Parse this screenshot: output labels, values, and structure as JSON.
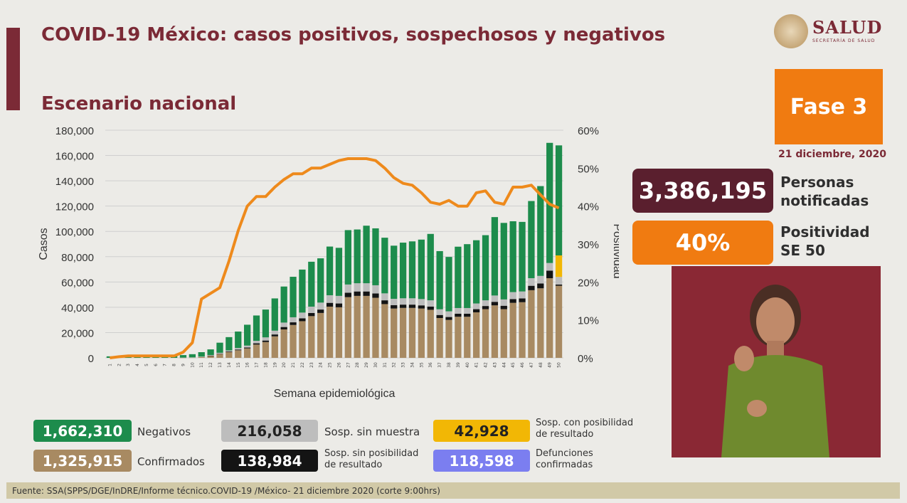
{
  "header": {
    "title": "COVID-19 México: casos positivos, sospechosos y negativos",
    "subtitle": "Escenario nacional"
  },
  "logo": {
    "name": "SALUD",
    "sub": "SECRETARÍA DE SALUD"
  },
  "phase": "Fase 3",
  "date": "21 diciembre, 2020",
  "kpis": {
    "persons_value": "3,386,195",
    "persons_label": "Personas notificadas",
    "positivity_value": "40%",
    "positivity_label": "Positividad SE 50"
  },
  "legend": {
    "negativos_value": "1,662,310",
    "negativos_label": "Negativos",
    "sosp_sin_muestra_value": "216,058",
    "sosp_sin_muestra_label": "Sosp. sin muestra",
    "sosp_con_pos_value": "42,928",
    "sosp_con_pos_label_1": "Sosp. con posibilidad",
    "sosp_con_pos_label_2": "de resultado",
    "confirmados_value": "1,325,915",
    "confirmados_label": "Confirmados",
    "sosp_sin_pos_value": "138,984",
    "sosp_sin_pos_label_1": "Sosp. sin posibilidad",
    "sosp_sin_pos_label_2": "de resultado",
    "defunciones_value": "118,598",
    "defunciones_label_1": "Defunciones",
    "defunciones_label_2": "confirmadas"
  },
  "footer": "Fuente: SSA(SPPS/DGE/InDRE/Informe técnico.COVID-19 /México- 21 diciembre 2020 (corte 9:00hrs)",
  "colors": {
    "confirmados": "#a88a62",
    "sosp_sin_pos": "#141414",
    "sosp_sin_muestra": "#bdbdbd",
    "sosp_con_pos": "#f2b705",
    "negativos": "#1d8c4c",
    "positividad": "#ee8a1c",
    "defunciones": "#7b7ef0"
  },
  "chart_data": {
    "type": "bar",
    "stacked": true,
    "xlabel": "Semana epidemiológica",
    "ylabel": "Casos",
    "ylabel_right": "Positividad",
    "ylim": [
      0,
      180000
    ],
    "y2lim": [
      0,
      60
    ],
    "yticks": [
      "0",
      "20,000",
      "40,000",
      "60,000",
      "80,000",
      "100,000",
      "120,000",
      "140,000",
      "160,000",
      "180,000"
    ],
    "y2ticks": [
      "0%",
      "10%",
      "20%",
      "30%",
      "40%",
      "50%",
      "60%"
    ],
    "categories": [
      "1",
      "2",
      "3",
      "4",
      "5",
      "6",
      "7",
      "8",
      "9",
      "10",
      "11",
      "12",
      "13",
      "14",
      "15",
      "16",
      "17",
      "18",
      "19",
      "20",
      "21",
      "22",
      "23",
      "24",
      "25",
      "26",
      "27",
      "28",
      "29",
      "30",
      "31",
      "32",
      "33",
      "34",
      "35",
      "36",
      "37",
      "38",
      "39",
      "40",
      "41",
      "42",
      "43",
      "44",
      "45",
      "46",
      "47",
      "48",
      "49",
      "50"
    ],
    "series": [
      {
        "name": "Confirmados",
        "values": [
          0,
          0,
          0,
          0,
          0,
          0,
          0,
          0,
          100,
          200,
          700,
          1500,
          3000,
          4500,
          6000,
          7500,
          10500,
          12500,
          17000,
          22500,
          26000,
          29000,
          33000,
          35500,
          40500,
          40000,
          48000,
          49000,
          49000,
          47500,
          42500,
          39000,
          39500,
          39500,
          39000,
          38000,
          31500,
          30000,
          32500,
          32500,
          36000,
          38500,
          41500,
          38500,
          43500,
          44000,
          53500,
          55000,
          63000,
          57000
        ]
      },
      {
        "name": "Sosp. sin posibilidad de resultado",
        "values": [
          0,
          0,
          0,
          0,
          0,
          0,
          0,
          0,
          0,
          0,
          0,
          200,
          300,
          500,
          600,
          700,
          1000,
          1200,
          1500,
          1900,
          2100,
          2300,
          2500,
          2700,
          3000,
          3000,
          3500,
          3500,
          3500,
          3400,
          3000,
          2700,
          2600,
          2600,
          2500,
          2500,
          2400,
          2300,
          2400,
          2400,
          2500,
          2500,
          2800,
          2700,
          3000,
          3000,
          3500,
          3800,
          6000,
          1000
        ]
      },
      {
        "name": "Sosp. sin muestra",
        "values": [
          0,
          0,
          0,
          0,
          0,
          0,
          0,
          0,
          100,
          200,
          300,
          500,
          700,
          900,
          1200,
          1500,
          2000,
          2500,
          3000,
          3500,
          4000,
          4500,
          5000,
          5500,
          6000,
          6000,
          6500,
          6500,
          6500,
          6500,
          5500,
          5000,
          5000,
          5000,
          5000,
          5000,
          4500,
          4500,
          4500,
          4500,
          4500,
          4500,
          5000,
          5000,
          5500,
          5500,
          6000,
          6000,
          6000,
          6000
        ]
      },
      {
        "name": "Sosp. con posibilidad de resultado",
        "values": [
          0,
          0,
          0,
          0,
          0,
          0,
          0,
          0,
          0,
          0,
          0,
          0,
          0,
          0,
          0,
          0,
          0,
          0,
          0,
          0,
          0,
          0,
          0,
          0,
          0,
          0,
          0,
          0,
          0,
          0,
          0,
          0,
          0,
          0,
          0,
          0,
          0,
          0,
          0,
          0,
          0,
          0,
          0,
          0,
          0,
          0,
          0,
          0,
          0,
          17000
        ]
      },
      {
        "name": "Negativos",
        "values": [
          1200,
          1500,
          1800,
          1800,
          1800,
          1800,
          1800,
          2000,
          2000,
          2500,
          3500,
          4500,
          8000,
          10500,
          13000,
          16500,
          20000,
          22000,
          25500,
          28500,
          32000,
          34000,
          35500,
          35000,
          38500,
          38000,
          43000,
          42500,
          45500,
          45000,
          44000,
          42000,
          44000,
          45000,
          47000,
          52500,
          46000,
          43000,
          48500,
          50500,
          50000,
          51500,
          62000,
          60500,
          56000,
          55000,
          61000,
          71000,
          95000,
          87000
        ]
      },
      {
        "name": "Positividad",
        "values": [
          0,
          0.3,
          0.5,
          0.5,
          0.5,
          0.5,
          0.5,
          0.5,
          1.5,
          4,
          15.5,
          17,
          18.5,
          25.5,
          33.5,
          40,
          42.5,
          42.5,
          45,
          47,
          48.5,
          48.5,
          50,
          50,
          51,
          52,
          52.5,
          52.5,
          52.5,
          52,
          50,
          47.5,
          46,
          45.5,
          43.5,
          41,
          40.5,
          41.5,
          40,
          40,
          43.5,
          44,
          41,
          40.5,
          45,
          45,
          45.5,
          43,
          40.5,
          39.5
        ]
      }
    ]
  }
}
